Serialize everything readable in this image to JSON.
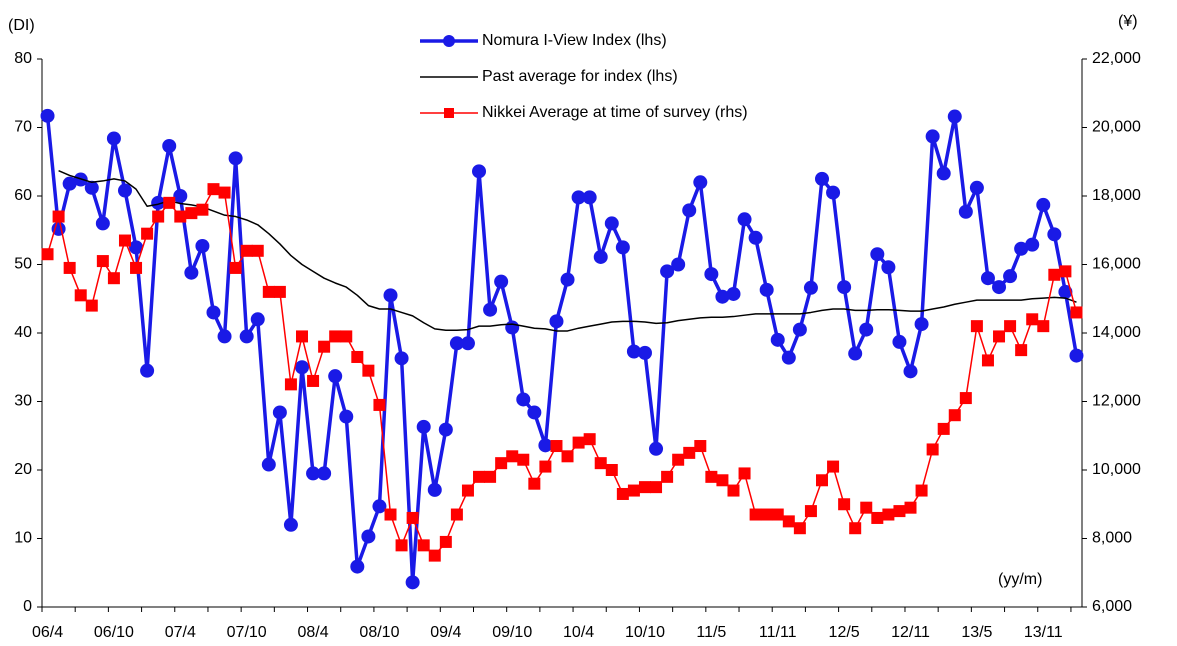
{
  "chart_data": {
    "type": "line",
    "left_unit": "(DI)",
    "right_unit": "(¥)",
    "x_unit": "(yy/m)",
    "categories": [
      "06/4",
      null,
      null,
      null,
      null,
      null,
      "06/10",
      null,
      null,
      null,
      null,
      null,
      "07/4",
      null,
      null,
      null,
      null,
      null,
      "07/10",
      null,
      null,
      null,
      null,
      null,
      "08/4",
      null,
      null,
      null,
      null,
      null,
      "08/10",
      null,
      null,
      null,
      null,
      null,
      "09/4",
      null,
      null,
      null,
      null,
      null,
      "09/10",
      null,
      null,
      null,
      null,
      null,
      "10/4",
      null,
      null,
      null,
      null,
      null,
      "10/10",
      null,
      null,
      null,
      null,
      null,
      "11/5",
      null,
      null,
      null,
      null,
      null,
      "11/11",
      null,
      null,
      null,
      null,
      null,
      "12/5",
      null,
      null,
      null,
      null,
      null,
      "12/11",
      null,
      null,
      null,
      null,
      null,
      "13/5",
      null,
      null,
      null,
      null,
      null,
      "13/11",
      null,
      null,
      null
    ],
    "series": [
      {
        "name": "Nomura I-View Index (lhs)",
        "color": "#1a1ae6",
        "marker": "circle",
        "width": 3.5,
        "values": [
          71.7,
          55.2,
          61.8,
          62.4,
          61.2,
          56.0,
          68.4,
          60.8,
          52.5,
          34.5,
          59.0,
          67.3,
          60.0,
          48.8,
          52.7,
          43.0,
          39.5,
          65.5,
          39.5,
          42.0,
          20.8,
          28.4,
          12.0,
          35.0,
          19.5,
          19.5,
          33.7,
          27.8,
          5.9,
          10.3,
          14.7,
          45.5,
          36.3,
          3.6,
          26.3,
          17.1,
          25.9,
          38.5,
          38.5,
          63.6,
          43.4,
          47.5,
          40.8,
          30.3,
          28.4,
          23.6,
          41.7,
          47.8,
          59.8,
          59.8,
          51.1,
          56.0,
          52.5,
          37.3,
          37.1,
          23.1,
          49.0,
          50.0,
          57.9,
          62.0,
          48.6,
          45.3,
          45.7,
          56.6,
          53.9,
          46.3,
          39.0,
          36.4,
          40.5,
          46.6,
          62.5,
          60.5,
          46.7,
          37.0,
          40.5,
          51.5,
          49.6,
          38.7,
          34.4,
          41.3,
          68.7,
          63.3,
          71.6,
          57.7,
          61.2,
          48.0,
          46.7,
          48.3,
          52.3,
          52.9,
          58.7,
          54.4,
          46.0,
          36.7
        ]
      },
      {
        "name": "Past average for index (lhs)",
        "color": "#000000",
        "marker": "none",
        "width": 1.5,
        "values": [
          null,
          63.7,
          63.0,
          62.5,
          62.0,
          62.2,
          62.5,
          62.2,
          61.0,
          58.5,
          58.8,
          59.3,
          58.9,
          58.7,
          58.4,
          57.8,
          57.2,
          57.0,
          56.5,
          55.8,
          54.5,
          53.0,
          51.3,
          50.0,
          49.0,
          48.0,
          47.3,
          46.7,
          45.5,
          44.0,
          43.5,
          43.5,
          43.0,
          42.5,
          41.5,
          40.6,
          40.4,
          40.4,
          40.5,
          41.0,
          41.0,
          41.2,
          41.3,
          41.0,
          40.7,
          40.6,
          40.3,
          40.3,
          40.7,
          41.0,
          41.3,
          41.6,
          41.7,
          41.7,
          41.6,
          41.4,
          41.5,
          41.8,
          42.0,
          42.2,
          42.3,
          42.3,
          42.4,
          42.6,
          42.8,
          42.8,
          42.8,
          42.8,
          42.8,
          43.0,
          43.3,
          43.5,
          43.5,
          43.3,
          43.3,
          43.4,
          43.4,
          43.3,
          43.2,
          43.2,
          43.5,
          43.8,
          44.2,
          44.5,
          44.8,
          44.8,
          44.8,
          44.8,
          44.8,
          45.0,
          45.1,
          45.2,
          45.1,
          44.5
        ]
      },
      {
        "name": "Nikkei Average at time of survey (rhs)",
        "color": "#ff0000",
        "marker": "square",
        "width": 1.5,
        "axis": "y2",
        "values": [
          16300,
          17400,
          15900,
          15100,
          14800,
          16100,
          15600,
          16700,
          15900,
          16900,
          17400,
          17800,
          17400,
          17500,
          17600,
          18200,
          18100,
          15900,
          16400,
          16400,
          15200,
          15200,
          12500,
          13900,
          12600,
          13600,
          13900,
          13900,
          13300,
          12900,
          11900,
          8700,
          7800,
          8600,
          7800,
          7500,
          7900,
          8700,
          9400,
          9800,
          9800,
          10200,
          10400,
          10300,
          9600,
          10100,
          10700,
          10400,
          10800,
          10900,
          10200,
          10000,
          9300,
          9400,
          9500,
          9500,
          9800,
          10300,
          10500,
          10700,
          9800,
          9700,
          9400,
          9900,
          8700,
          8700,
          8700,
          8500,
          8300,
          8800,
          9700,
          10100,
          9000,
          8300,
          8900,
          8600,
          8700,
          8800,
          8900,
          9400,
          10600,
          11200,
          11600,
          12100,
          14200,
          13200,
          13900,
          14200,
          13500,
          14400,
          14200,
          15700,
          15800,
          14600
        ]
      }
    ],
    "ylim": [
      0,
      80
    ],
    "yticks": [
      0,
      10,
      20,
      30,
      40,
      50,
      60,
      70,
      80
    ],
    "y2lim": [
      6000,
      22000
    ],
    "y2ticks": [
      {
        "value": 6000,
        "label": "6,000"
      },
      {
        "value": 8000,
        "label": "8,000"
      },
      {
        "value": 10000,
        "label": "10,000"
      },
      {
        "value": 12000,
        "label": "12,000"
      },
      {
        "value": 14000,
        "label": "14,000"
      },
      {
        "value": 16000,
        "label": "16,000"
      },
      {
        "value": 18000,
        "label": "18,000"
      },
      {
        "value": 20000,
        "label": "20,000"
      },
      {
        "value": 22000,
        "label": "22,000"
      }
    ],
    "grid": false,
    "legend": "top"
  }
}
